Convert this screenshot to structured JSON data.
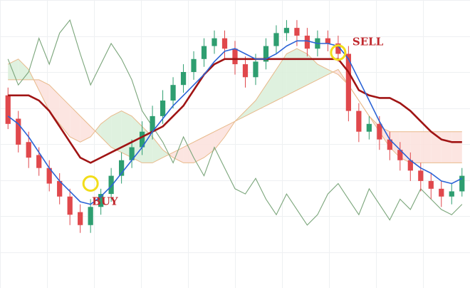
{
  "chart_data": {
    "type": "candlestick",
    "indicator": "ichimoku",
    "title": "",
    "xlabel": "",
    "ylabel": "",
    "grid": true,
    "ylim": [
      0,
      100
    ],
    "colors": {
      "bull": "#2e9e70",
      "bear": "#e0484c",
      "tenkan": "#2b63d6",
      "kijun": "#a01414",
      "chikou": "#7aa57a",
      "cloud_bull_fill": "#d9efd9",
      "cloud_bear_fill": "#fbe0dc",
      "cloud_edge": "#e8b98a",
      "marker": "#f2dd1a"
    },
    "candles": [
      [
        66,
        55,
        69,
        53
      ],
      [
        57,
        47,
        60,
        44
      ],
      [
        48,
        42,
        52,
        38
      ],
      [
        43,
        38,
        46,
        35
      ],
      [
        38,
        32,
        41,
        29
      ],
      [
        33,
        27,
        36,
        24
      ],
      [
        27,
        20,
        30,
        16
      ],
      [
        21,
        16,
        24,
        13
      ],
      [
        16,
        23,
        26,
        13
      ],
      [
        23,
        28,
        30,
        20
      ],
      [
        28,
        35,
        38,
        25
      ],
      [
        35,
        41,
        44,
        32
      ],
      [
        41,
        46,
        49,
        38
      ],
      [
        46,
        52,
        56,
        43
      ],
      [
        52,
        58,
        62,
        49
      ],
      [
        58,
        64,
        68,
        55
      ],
      [
        64,
        70,
        73,
        61
      ],
      [
        70,
        75,
        78,
        67
      ],
      [
        75,
        80,
        83,
        72
      ],
      [
        80,
        85,
        88,
        77
      ],
      [
        85,
        88,
        91,
        82
      ],
      [
        88,
        84,
        91,
        80
      ],
      [
        84,
        78,
        87,
        74
      ],
      [
        78,
        73,
        81,
        69
      ],
      [
        73,
        79,
        82,
        70
      ],
      [
        79,
        85,
        88,
        76
      ],
      [
        85,
        90,
        93,
        82
      ],
      [
        90,
        92,
        95,
        87
      ],
      [
        92,
        89,
        95,
        85
      ],
      [
        89,
        84,
        92,
        81
      ],
      [
        84,
        88,
        91,
        81
      ],
      [
        88,
        86,
        91,
        83
      ],
      [
        86,
        82,
        89,
        79
      ],
      [
        82,
        60,
        85,
        56
      ],
      [
        60,
        52,
        63,
        48
      ],
      [
        52,
        55,
        58,
        49
      ],
      [
        55,
        49,
        58,
        45
      ],
      [
        49,
        45,
        52,
        41
      ],
      [
        45,
        41,
        48,
        37
      ],
      [
        41,
        37,
        44,
        33
      ],
      [
        37,
        33,
        40,
        29
      ],
      [
        33,
        30,
        36,
        26
      ],
      [
        30,
        27,
        33,
        23
      ],
      [
        27,
        29,
        32,
        24
      ],
      [
        29,
        35,
        38,
        27
      ]
    ],
    "tenkan_sen": [
      58,
      55,
      50,
      44,
      38,
      33,
      29,
      25,
      24,
      27,
      31,
      36,
      41,
      46,
      52,
      57,
      62,
      66,
      70,
      74,
      79,
      83,
      84,
      82,
      80,
      80,
      82,
      85,
      87,
      87,
      86,
      86,
      85,
      80,
      72,
      64,
      56,
      49,
      45,
      41,
      38,
      36,
      33,
      32,
      34
    ],
    "kijun_sen": [
      66,
      66,
      66,
      64,
      60,
      54,
      48,
      42,
      40,
      42,
      44,
      46,
      48,
      50,
      52,
      54,
      58,
      62,
      68,
      74,
      78,
      80,
      80,
      80,
      80,
      80,
      80,
      80,
      80,
      80,
      80,
      80,
      80,
      75,
      68,
      66,
      65,
      65,
      63,
      60,
      56,
      52,
      49,
      48,
      48
    ],
    "chikou_span": [
      80,
      70,
      75,
      88,
      78,
      90,
      95,
      82,
      70,
      78,
      86,
      80,
      72,
      60,
      54,
      48,
      40,
      50,
      42,
      35,
      46,
      38,
      30,
      28,
      34,
      26,
      20,
      28,
      22,
      16,
      20,
      28,
      32,
      26,
      20,
      30,
      24,
      18,
      26,
      22,
      30,
      26,
      22,
      20,
      24
    ],
    "senkou_a": [
      78,
      80,
      76,
      68,
      60,
      55,
      50,
      48,
      50,
      55,
      58,
      60,
      58,
      54,
      50,
      45,
      42,
      40,
      40,
      42,
      45,
      50,
      56,
      60,
      64,
      70,
      76,
      82,
      84,
      82,
      78,
      76,
      74,
      70,
      64,
      58,
      52,
      46,
      42,
      40,
      40,
      40,
      40,
      40,
      40
    ],
    "senkou_b": [
      72,
      72,
      72,
      72,
      70,
      66,
      62,
      58,
      54,
      50,
      46,
      44,
      42,
      40,
      40,
      42,
      44,
      46,
      48,
      50,
      52,
      54,
      56,
      58,
      60,
      62,
      64,
      66,
      68,
      70,
      72,
      74,
      76,
      70,
      64,
      58,
      54,
      52,
      52,
      52,
      52,
      52,
      52,
      52,
      52
    ],
    "annotations": [
      {
        "label": "BUY",
        "candle_index": 8
      },
      {
        "label": "SELL",
        "candle_index": 32
      }
    ]
  }
}
